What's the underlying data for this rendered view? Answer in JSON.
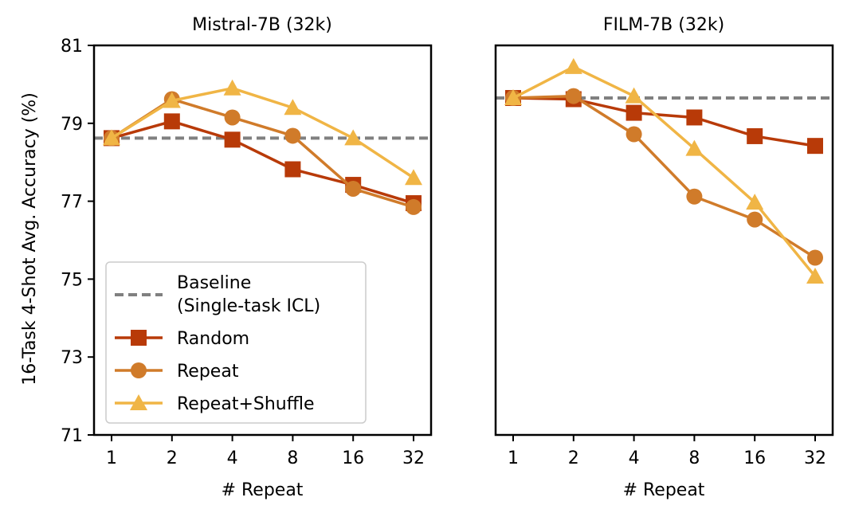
{
  "chart_data": [
    {
      "type": "line",
      "title": "Mistral-7B (32k)",
      "xlabel": "# Repeat",
      "ylabel": "16-Task 4-Shot Avg. Accuracy (%)",
      "categories": [
        "1",
        "2",
        "4",
        "8",
        "16",
        "32"
      ],
      "ylim": [
        71,
        81
      ],
      "yticks": [
        "71",
        "73",
        "75",
        "77",
        "79",
        "81"
      ],
      "baseline": 78.62,
      "series": [
        {
          "name": "Random",
          "marker": "square",
          "color": "#b83a08",
          "values": [
            78.62,
            79.05,
            78.58,
            77.82,
            77.42,
            76.95
          ]
        },
        {
          "name": "Repeat",
          "marker": "circle",
          "color": "#d07b2a",
          "values": [
            78.62,
            79.62,
            79.15,
            78.68,
            77.32,
            76.85
          ]
        },
        {
          "name": "Repeat+Shuffle",
          "marker": "triangle",
          "color": "#f0b545",
          "values": [
            78.62,
            79.58,
            79.9,
            79.4,
            78.62,
            77.6
          ]
        }
      ]
    },
    {
      "type": "line",
      "title": "FILM-7B (32k)",
      "xlabel": "# Repeat",
      "ylabel": "",
      "categories": [
        "1",
        "2",
        "4",
        "8",
        "16",
        "32"
      ],
      "ylim": [
        71,
        81
      ],
      "baseline": 79.65,
      "series": [
        {
          "name": "Random",
          "marker": "square",
          "color": "#b83a08",
          "values": [
            79.65,
            79.62,
            79.27,
            79.15,
            78.67,
            78.42
          ]
        },
        {
          "name": "Repeat",
          "marker": "circle",
          "color": "#d07b2a",
          "values": [
            79.65,
            79.7,
            78.72,
            77.12,
            76.53,
            75.55
          ]
        },
        {
          "name": "Repeat+Shuffle",
          "marker": "triangle",
          "color": "#f0b545",
          "values": [
            79.65,
            80.45,
            79.7,
            78.35,
            76.97,
            75.07
          ]
        }
      ]
    }
  ],
  "legend": {
    "placement": "lower-left",
    "baseline_label_line1": "Baseline",
    "baseline_label_line2": "(Single-task ICL)",
    "baseline_color": "#808080",
    "entries": [
      "Random",
      "Repeat",
      "Repeat+Shuffle"
    ]
  }
}
